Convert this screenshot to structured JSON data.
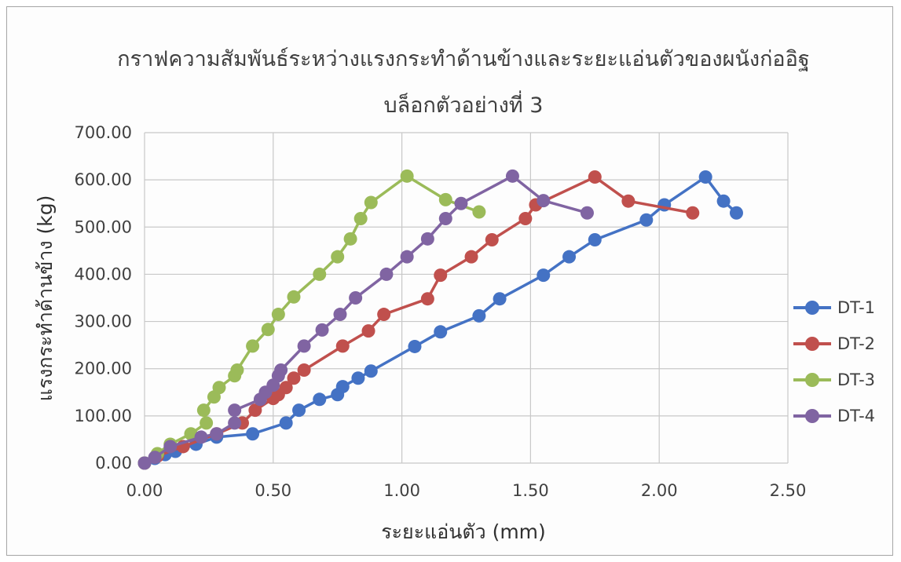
{
  "chart_data": {
    "type": "line",
    "title_line1": "กราฟความสัมพันธ์ระหว่างแรงกระทำด้านข้างและระยะแอ่นตัวของผนังก่ออิฐ",
    "title_line2": "บล็อกตัวอย่างที่ 3",
    "xlabel": "ระยะแอ่นตัว (mm)",
    "ylabel": "แรงกระทำด้านข้าง (kg)",
    "xlim": [
      0,
      2.5
    ],
    "ylim": [
      0,
      700
    ],
    "x_ticks": [
      "0.00",
      "0.50",
      "1.00",
      "1.50",
      "2.00",
      "2.50"
    ],
    "y_ticks": [
      "0.00",
      "100.00",
      "200.00",
      "300.00",
      "400.00",
      "500.00",
      "600.00",
      "700.00"
    ],
    "grid": true,
    "legend": "right",
    "series": [
      {
        "name": "DT-1",
        "color": "#4472c4",
        "points": [
          [
            0,
            0
          ],
          [
            0.04,
            10
          ],
          [
            0.08,
            18
          ],
          [
            0.12,
            25
          ],
          [
            0.2,
            40
          ],
          [
            0.28,
            55
          ],
          [
            0.42,
            62
          ],
          [
            0.55,
            85
          ],
          [
            0.6,
            112
          ],
          [
            0.68,
            135
          ],
          [
            0.75,
            145
          ],
          [
            0.77,
            162
          ],
          [
            0.83,
            180
          ],
          [
            0.88,
            195
          ],
          [
            1.05,
            247
          ],
          [
            1.15,
            278
          ],
          [
            1.3,
            312
          ],
          [
            1.38,
            348
          ],
          [
            1.55,
            398
          ],
          [
            1.65,
            437
          ],
          [
            1.75,
            473
          ],
          [
            1.95,
            515
          ],
          [
            2.02,
            547
          ],
          [
            2.18,
            606
          ],
          [
            2.25,
            555
          ],
          [
            2.3,
            530
          ]
        ]
      },
      {
        "name": "DT-2",
        "color": "#c0504d",
        "points": [
          [
            0,
            0
          ],
          [
            0.05,
            15
          ],
          [
            0.15,
            35
          ],
          [
            0.28,
            62
          ],
          [
            0.38,
            85
          ],
          [
            0.43,
            112
          ],
          [
            0.5,
            137
          ],
          [
            0.52,
            145
          ],
          [
            0.55,
            160
          ],
          [
            0.58,
            180
          ],
          [
            0.62,
            197
          ],
          [
            0.77,
            248
          ],
          [
            0.87,
            280
          ],
          [
            0.93,
            315
          ],
          [
            1.1,
            348
          ],
          [
            1.15,
            398
          ],
          [
            1.27,
            437
          ],
          [
            1.35,
            473
          ],
          [
            1.48,
            518
          ],
          [
            1.52,
            547
          ],
          [
            1.75,
            606
          ],
          [
            1.88,
            555
          ],
          [
            2.13,
            530
          ]
        ]
      },
      {
        "name": "DT-3",
        "color": "#9bbb59",
        "points": [
          [
            0,
            0
          ],
          [
            0.05,
            20
          ],
          [
            0.1,
            40
          ],
          [
            0.18,
            62
          ],
          [
            0.24,
            85
          ],
          [
            0.23,
            112
          ],
          [
            0.27,
            140
          ],
          [
            0.29,
            160
          ],
          [
            0.35,
            185
          ],
          [
            0.36,
            197
          ],
          [
            0.42,
            248
          ],
          [
            0.48,
            283
          ],
          [
            0.52,
            315
          ],
          [
            0.58,
            352
          ],
          [
            0.68,
            400
          ],
          [
            0.75,
            437
          ],
          [
            0.8,
            475
          ],
          [
            0.84,
            518
          ],
          [
            0.88,
            552
          ],
          [
            1.02,
            608
          ],
          [
            1.17,
            558
          ],
          [
            1.3,
            532
          ]
        ]
      },
      {
        "name": "DT-4",
        "color": "#8064a2",
        "points": [
          [
            0,
            0
          ],
          [
            0.04,
            12
          ],
          [
            0.1,
            35
          ],
          [
            0.22,
            55
          ],
          [
            0.28,
            62
          ],
          [
            0.35,
            85
          ],
          [
            0.35,
            112
          ],
          [
            0.45,
            135
          ],
          [
            0.47,
            150
          ],
          [
            0.5,
            165
          ],
          [
            0.52,
            185
          ],
          [
            0.53,
            197
          ],
          [
            0.62,
            248
          ],
          [
            0.69,
            282
          ],
          [
            0.76,
            315
          ],
          [
            0.82,
            350
          ],
          [
            0.94,
            400
          ],
          [
            1.02,
            437
          ],
          [
            1.1,
            475
          ],
          [
            1.17,
            518
          ],
          [
            1.23,
            550
          ],
          [
            1.43,
            608
          ],
          [
            1.55,
            556
          ],
          [
            1.72,
            530
          ]
        ]
      }
    ]
  }
}
